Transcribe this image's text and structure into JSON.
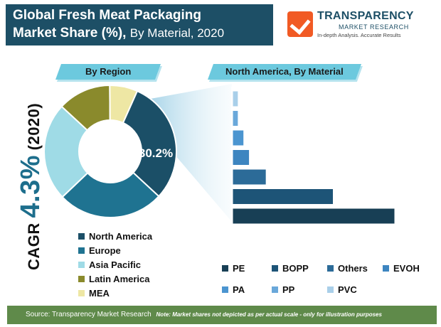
{
  "title": {
    "line1": "Global Fresh Meat Packaging",
    "line2_bold": "Market Share (%),",
    "line2_rest": "By Material, 2020"
  },
  "logo": {
    "name": "TRANSPARENCY",
    "sub": "MARKET RESEARCH",
    "tagline": "In-depth Analysis. Accurate Results"
  },
  "tabs": {
    "region": "By Region",
    "na": "North America, By Material"
  },
  "cagr": {
    "prefix": "CAGR ",
    "value": "4.3%",
    "suffix": " (2020)"
  },
  "colors": {
    "north_america": "#1b4f67",
    "europe": "#1f7391",
    "asia_pacific": "#9fdbe6",
    "latin_america": "#8a8a2c",
    "mea": "#eee7a4",
    "PE": "#183f55",
    "BOPP": "#1d5477",
    "Others": "#2c6b98",
    "EVOH": "#3d85c0",
    "PA": "#4b95d0",
    "PP": "#6aa8da",
    "PVC": "#a9cfe9"
  },
  "chart_data": [
    {
      "type": "pie",
      "title": "By Region",
      "categories": [
        "North America",
        "Europe",
        "Asia Pacific",
        "Latin America",
        "MEA"
      ],
      "values": [
        30.2,
        26,
        24,
        13,
        6.8
      ],
      "data_labels": [
        "30.2%",
        "",
        "",
        "",
        ""
      ],
      "legend_placement": "bottom-left"
    },
    {
      "type": "bar",
      "orientation": "horizontal",
      "title": "North America, By Material",
      "categories": [
        "PVC",
        "PP",
        "PA",
        "EVOH",
        "Others",
        "BOPP",
        "PE"
      ],
      "values": [
        1,
        1,
        2,
        3,
        6,
        18,
        29
      ],
      "note": "Market shares not depicted as per actual scale",
      "legend_placement": "bottom-right"
    }
  ],
  "legend_left": [
    "North America",
    "Europe",
    "Asia Pacific",
    "Latin America",
    "MEA"
  ],
  "legend_right": [
    "PE",
    "BOPP",
    "Others",
    "EVOH",
    "PA",
    "PP",
    "PVC"
  ],
  "footer": {
    "source": "Source: Transparency Market Research",
    "note": "Note: Market shares not depicted as per actual scale - only for illustration purposes"
  }
}
